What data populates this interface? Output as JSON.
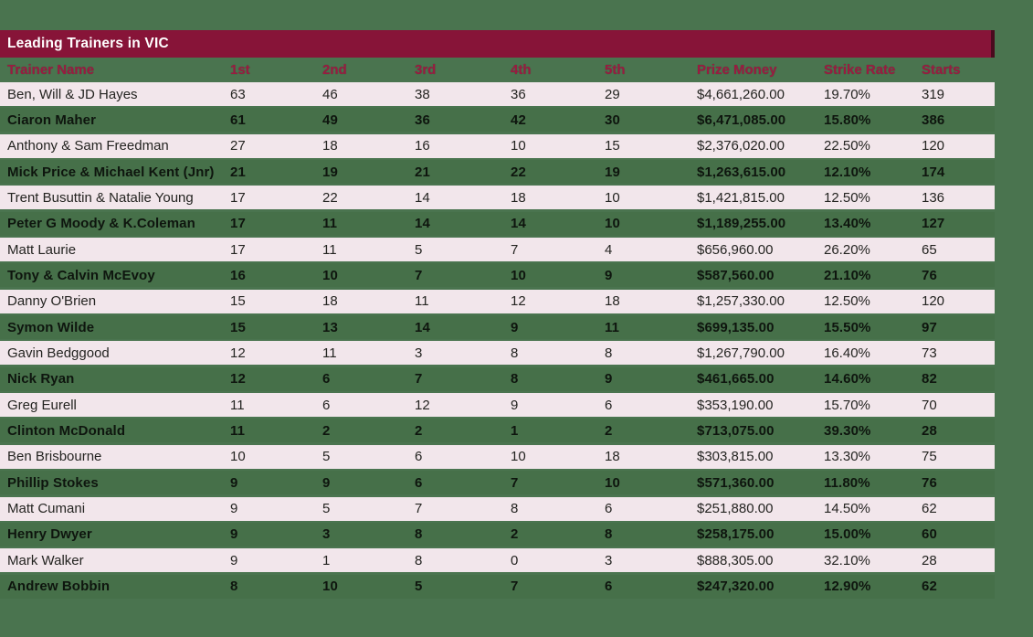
{
  "title_bar": {
    "label": "Leading Trainers in VIC"
  },
  "colors": {
    "page_bg": "#4A744F",
    "title_bar_bg": "#871438",
    "title_bar_text": "#FFFFFF",
    "column_header_text": "#9A1B41",
    "row_light_bg": "#F2E6EB",
    "row_dark_bg": "#467049",
    "cell_text": "#1D1D1B"
  },
  "chart_data": {
    "type": "table",
    "title": "Leading Trainers in VIC",
    "columns": [
      "Trainer Name",
      "1st",
      "2nd",
      "3rd",
      "4th",
      "5th",
      "Prize Money",
      "Strike Rate",
      "Starts"
    ],
    "rows": [
      [
        "Ben, Will & JD Hayes",
        "63",
        "46",
        "38",
        "36",
        "29",
        "$4,661,260.00",
        "19.70%",
        "319"
      ],
      [
        "Ciaron Maher",
        "61",
        "49",
        "36",
        "42",
        "30",
        "$6,471,085.00",
        "15.80%",
        "386"
      ],
      [
        "Anthony & Sam Freedman",
        "27",
        "18",
        "16",
        "10",
        "15",
        "$2,376,020.00",
        "22.50%",
        "120"
      ],
      [
        "Mick Price & Michael Kent (Jnr)",
        "21",
        "19",
        "21",
        "22",
        "19",
        "$1,263,615.00",
        "12.10%",
        "174"
      ],
      [
        "Trent Busuttin & Natalie Young",
        "17",
        "22",
        "14",
        "18",
        "10",
        "$1,421,815.00",
        "12.50%",
        "136"
      ],
      [
        "Peter G Moody & K.Coleman",
        "17",
        "11",
        "14",
        "14",
        "10",
        "$1,189,255.00",
        "13.40%",
        "127"
      ],
      [
        "Matt Laurie",
        "17",
        "11",
        "5",
        "7",
        "4",
        "$656,960.00",
        "26.20%",
        "65"
      ],
      [
        "Tony & Calvin McEvoy",
        "16",
        "10",
        "7",
        "10",
        "9",
        "$587,560.00",
        "21.10%",
        "76"
      ],
      [
        "Danny O'Brien",
        "15",
        "18",
        "11",
        "12",
        "18",
        "$1,257,330.00",
        "12.50%",
        "120"
      ],
      [
        "Symon Wilde",
        "15",
        "13",
        "14",
        "9",
        "11",
        "$699,135.00",
        "15.50%",
        "97"
      ],
      [
        "Gavin Bedggood",
        "12",
        "11",
        "3",
        "8",
        "8",
        "$1,267,790.00",
        "16.40%",
        "73"
      ],
      [
        "Nick Ryan",
        "12",
        "6",
        "7",
        "8",
        "9",
        "$461,665.00",
        "14.60%",
        "82"
      ],
      [
        "Greg Eurell",
        "11",
        "6",
        "12",
        "9",
        "6",
        "$353,190.00",
        "15.70%",
        "70"
      ],
      [
        "Clinton McDonald",
        "11",
        "2",
        "2",
        "1",
        "2",
        "$713,075.00",
        "39.30%",
        "28"
      ],
      [
        "Ben Brisbourne",
        "10",
        "5",
        "6",
        "10",
        "18",
        "$303,815.00",
        "13.30%",
        "75"
      ],
      [
        "Phillip Stokes",
        "9",
        "9",
        "6",
        "7",
        "10",
        "$571,360.00",
        "11.80%",
        "76"
      ],
      [
        "Matt Cumani",
        "9",
        "5",
        "7",
        "8",
        "6",
        "$251,880.00",
        "14.50%",
        "62"
      ],
      [
        "Henry Dwyer",
        "9",
        "3",
        "8",
        "2",
        "8",
        "$258,175.00",
        "15.00%",
        "60"
      ],
      [
        "Mark Walker",
        "9",
        "1",
        "8",
        "0",
        "3",
        "$888,305.00",
        "32.10%",
        "28"
      ],
      [
        "Andrew Bobbin",
        "8",
        "10",
        "5",
        "7",
        "6",
        "$247,320.00",
        "12.90%",
        "62"
      ]
    ]
  }
}
